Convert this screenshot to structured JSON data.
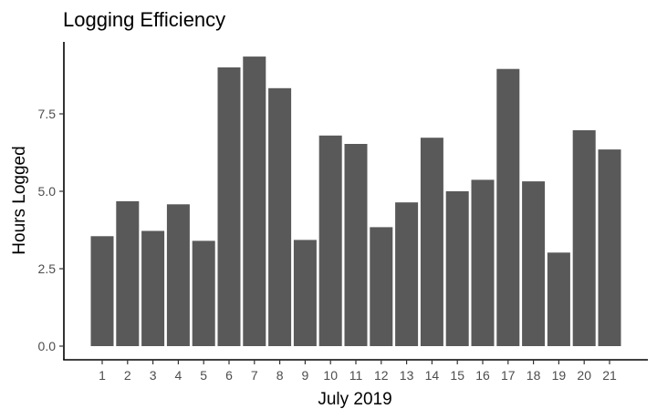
{
  "chart_data": {
    "type": "bar",
    "title": "Logging Efficiency",
    "xlabel": "July 2019",
    "ylabel": "Hours Logged",
    "categories": [
      "1",
      "2",
      "3",
      "4",
      "5",
      "6",
      "7",
      "8",
      "9",
      "10",
      "11",
      "12",
      "13",
      "14",
      "15",
      "16",
      "17",
      "18",
      "19",
      "20",
      "21"
    ],
    "values": [
      3.55,
      4.68,
      3.72,
      4.58,
      3.4,
      9.0,
      9.35,
      8.33,
      3.43,
      6.8,
      6.53,
      3.84,
      4.64,
      6.73,
      5.0,
      5.37,
      8.95,
      5.32,
      3.02,
      6.97,
      6.35
    ],
    "y_ticks": [
      "0.0",
      "2.5",
      "5.0",
      "7.5"
    ],
    "ylim": [
      0,
      9.8
    ],
    "bar_color": "#595959",
    "grid": false,
    "legend": "none"
  }
}
